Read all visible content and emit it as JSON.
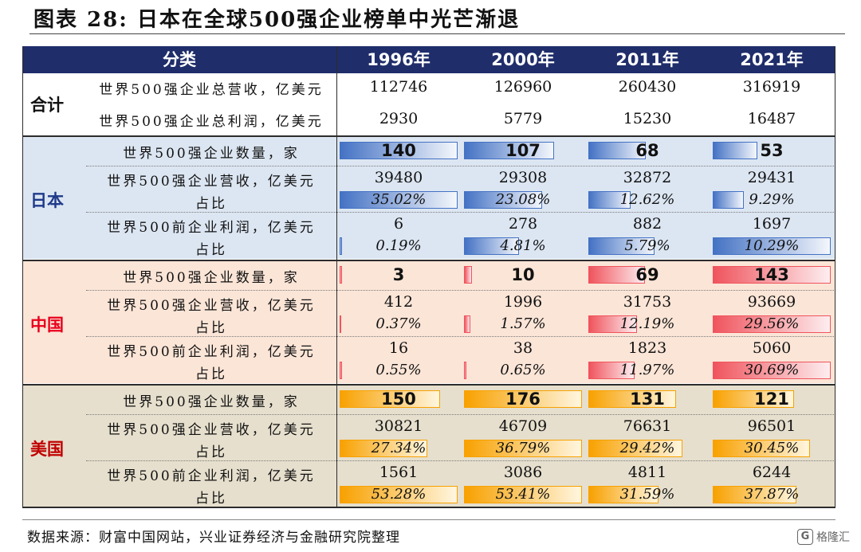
{
  "title": "图表 28:  日本在全球500强企业榜单中光芒渐退",
  "header": {
    "category": "分类",
    "years": [
      "1996年",
      "2000年",
      "2011年",
      "2021年"
    ],
    "color": "#1f2d6a"
  },
  "groups": {
    "total": {
      "name": "合计",
      "rows": [
        {
          "label": "世界500强企业总营收，亿美元",
          "values": [
            "112746",
            "126960",
            "260430",
            "316919"
          ]
        },
        {
          "label": "世界500强企业总利润，亿美元",
          "values": [
            "2930",
            "5779",
            "15230",
            "16487"
          ]
        }
      ]
    },
    "japan": {
      "name": "日本",
      "color": "#4472c4",
      "name_color": "#1f3a8a",
      "count_label": "世界500强企业数量，家",
      "count": [
        140,
        107,
        68,
        53
      ],
      "revenue_label": "世界500强企业营收，亿美元",
      "revenue": [
        "39480",
        "29308",
        "32872",
        "29431"
      ],
      "share_label": "占比",
      "revenue_share": [
        35.02,
        23.08,
        12.62,
        9.29
      ],
      "profit_label": "世界500前企业利润，亿美元",
      "profit": [
        "6",
        "278",
        "882",
        "1697"
      ],
      "profit_share": [
        0.19,
        4.81,
        5.79,
        10.29
      ]
    },
    "china": {
      "name": "中国",
      "color": "#f0545d",
      "name_color": "#e8001c",
      "count_label": "世界500强企业数量，家",
      "count": [
        3,
        10,
        69,
        143
      ],
      "revenue_label": "世界500强企业营收，亿美元",
      "revenue": [
        "412",
        "1996",
        "31753",
        "93669"
      ],
      "share_label": "占比",
      "revenue_share": [
        0.37,
        1.57,
        12.19,
        29.56
      ],
      "profit_label": "世界500前企业利润，亿美元",
      "profit": [
        "16",
        "38",
        "1823",
        "5060"
      ],
      "profit_share": [
        0.55,
        0.65,
        11.97,
        30.69
      ]
    },
    "usa": {
      "name": "美国",
      "color": "#f8a100",
      "name_color": "#c00000",
      "count_label": "世界500强企业数量，家",
      "count": [
        150,
        176,
        131,
        121
      ],
      "revenue_label": "世界500强企业营收，亿美元",
      "revenue": [
        "30821",
        "46709",
        "76631",
        "96501"
      ],
      "share_label": "占比",
      "revenue_share": [
        27.34,
        36.79,
        29.42,
        30.45
      ],
      "profit_label": "世界500前企业利润，亿美元",
      "profit": [
        "1561",
        "3086",
        "4811",
        "6244"
      ],
      "profit_share": [
        53.28,
        53.41,
        31.59,
        37.87
      ]
    }
  },
  "source": "数据来源：财富中国网站，兴业证券经济与金融研究院整理",
  "watermark": "格隆汇"
}
